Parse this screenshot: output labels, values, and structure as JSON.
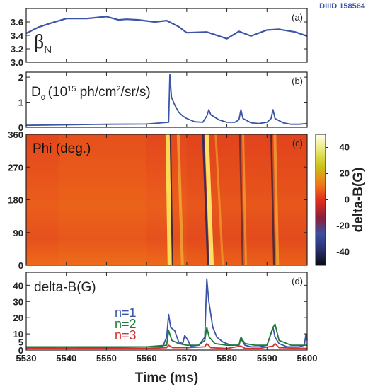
{
  "header": {
    "shot_label": "DIIID 158564"
  },
  "colors": {
    "blue": "#3b55a8",
    "green": "#1f7a3a",
    "red": "#d43030",
    "axis": "#222222"
  },
  "x_axis": {
    "label": "Time (ms)",
    "range": [
      5530,
      5600
    ],
    "ticks": [
      "5530",
      "5540",
      "5550",
      "5560",
      "5570",
      "5580",
      "5590",
      "5600"
    ]
  },
  "chart_data": [
    {
      "type": "line",
      "panel": "(a)",
      "ylabel": "βN",
      "ylabel_main": "β",
      "ylabel_sub": "N",
      "ylim": [
        3.0,
        3.8
      ],
      "yticks": [
        "3.0",
        "3.2",
        "3.4",
        "3.6"
      ],
      "series": [
        {
          "color": "#3b55a8",
          "x": [
            5530,
            5533,
            5536,
            5540,
            5545,
            5550,
            5553,
            5555,
            5558,
            5562,
            5565,
            5568,
            5570,
            5575,
            5580,
            5583,
            5586,
            5590,
            5593,
            5597,
            5600
          ],
          "y": [
            3.43,
            3.52,
            3.58,
            3.65,
            3.65,
            3.68,
            3.63,
            3.64,
            3.63,
            3.6,
            3.62,
            3.53,
            3.44,
            3.45,
            3.35,
            3.46,
            3.39,
            3.48,
            3.49,
            3.45,
            3.39
          ]
        }
      ]
    },
    {
      "type": "line",
      "panel": "(b)",
      "ylabel": "Dα (10^15 ph/cm²/sr/s)",
      "ylabel_main": "D",
      "ylabel_sub": "α",
      "ylabel_rest": "(10",
      "ylabel_sup": "15",
      "ylabel_tail": " ph/cm",
      "ylabel_sup2": "2",
      "ylabel_end": "/sr/s)",
      "ylim": [
        0,
        2.2
      ],
      "yticks": [
        "0",
        "1",
        "2"
      ],
      "series": [
        {
          "color": "#3b55a8",
          "x": [
            5530,
            5540,
            5550,
            5560,
            5565.5,
            5565.8,
            5566.2,
            5567,
            5568,
            5569,
            5570,
            5572,
            5574,
            5575,
            5575.5,
            5576,
            5577,
            5578,
            5580,
            5582,
            5583,
            5583.5,
            5584,
            5586,
            5588,
            5590,
            5591,
            5591.5,
            5592,
            5594,
            5596,
            5598,
            5600
          ],
          "y": [
            0.08,
            0.1,
            0.12,
            0.13,
            0.2,
            2.1,
            1.2,
            0.9,
            0.6,
            0.45,
            0.35,
            0.22,
            0.2,
            0.45,
            0.7,
            0.5,
            0.4,
            0.3,
            0.2,
            0.2,
            0.3,
            0.7,
            0.35,
            0.18,
            0.15,
            0.2,
            0.35,
            0.7,
            0.35,
            0.18,
            0.12,
            0.12,
            0.15
          ]
        }
      ]
    },
    {
      "type": "heatmap",
      "panel": "(c)",
      "ylabel": "Phi (deg.)",
      "ylim": [
        0,
        360
      ],
      "yticks": [
        "0",
        "90",
        "180",
        "270",
        "360"
      ],
      "colorbar": {
        "label": "delta-B(G)",
        "range": [
          -50,
          50
        ],
        "ticks": [
          "-40",
          "-20",
          "0",
          "20",
          "40"
        ]
      },
      "events_ms": [
        5565.8,
        5575.3,
        5583.6,
        5591.7
      ]
    },
    {
      "type": "line",
      "panel": "(d)",
      "ylabel": "delta-B(G)",
      "ylim": [
        0,
        48
      ],
      "yticks": [
        "0",
        "5",
        "10",
        "20",
        "30",
        "40"
      ],
      "legend": [
        "n=1",
        "n=2",
        "n=3"
      ],
      "series": [
        {
          "name": "n=1",
          "color": "#3b55a8",
          "x": [
            5530,
            5540,
            5550,
            5560,
            5564,
            5565,
            5565.5,
            5566,
            5567,
            5568,
            5569,
            5569.5,
            5570.3,
            5571,
            5573,
            5574.5,
            5575,
            5575.5,
            5576.5,
            5577.5,
            5579,
            5581,
            5583,
            5583.5,
            5584.5,
            5586,
            5588,
            5590,
            5591.5,
            5592,
            5593,
            5595,
            5598,
            5599.3,
            5599.7,
            5600
          ],
          "y": [
            1.5,
            1.8,
            1.5,
            2,
            2,
            8,
            22,
            14,
            12,
            5,
            4,
            9,
            6,
            2.5,
            3,
            8,
            44,
            30,
            14,
            8,
            5,
            3,
            3,
            7,
            3,
            2,
            2,
            3,
            14,
            8,
            4,
            2,
            2,
            3,
            10,
            6
          ]
        },
        {
          "name": "n=2",
          "color": "#1f7a3a",
          "x": [
            5530,
            5540,
            5550,
            5560,
            5565,
            5565.5,
            5566.3,
            5568,
            5570,
            5573,
            5574.5,
            5575,
            5575.6,
            5577,
            5580,
            5583,
            5583.5,
            5584.5,
            5587,
            5590,
            5591.5,
            5592,
            5593,
            5596,
            5600
          ],
          "y": [
            2,
            2,
            2,
            2,
            3,
            12,
            6,
            4,
            3,
            3,
            6,
            14,
            8,
            4,
            3,
            3,
            8,
            4,
            3,
            3,
            14,
            16,
            6,
            3,
            3
          ]
        },
        {
          "name": "n=3",
          "color": "#d43030",
          "x": [
            5530,
            5540,
            5550,
            5560,
            5565,
            5565.5,
            5566.5,
            5570,
            5574.5,
            5575,
            5576,
            5580,
            5583.5,
            5584.5,
            5588,
            5591.5,
            5592,
            5593,
            5600
          ],
          "y": [
            1,
            1,
            1,
            1,
            1.5,
            3,
            1.5,
            1.5,
            2,
            4,
            1.5,
            1,
            2.5,
            1,
            1,
            2.5,
            4,
            1.5,
            1
          ]
        }
      ]
    }
  ]
}
